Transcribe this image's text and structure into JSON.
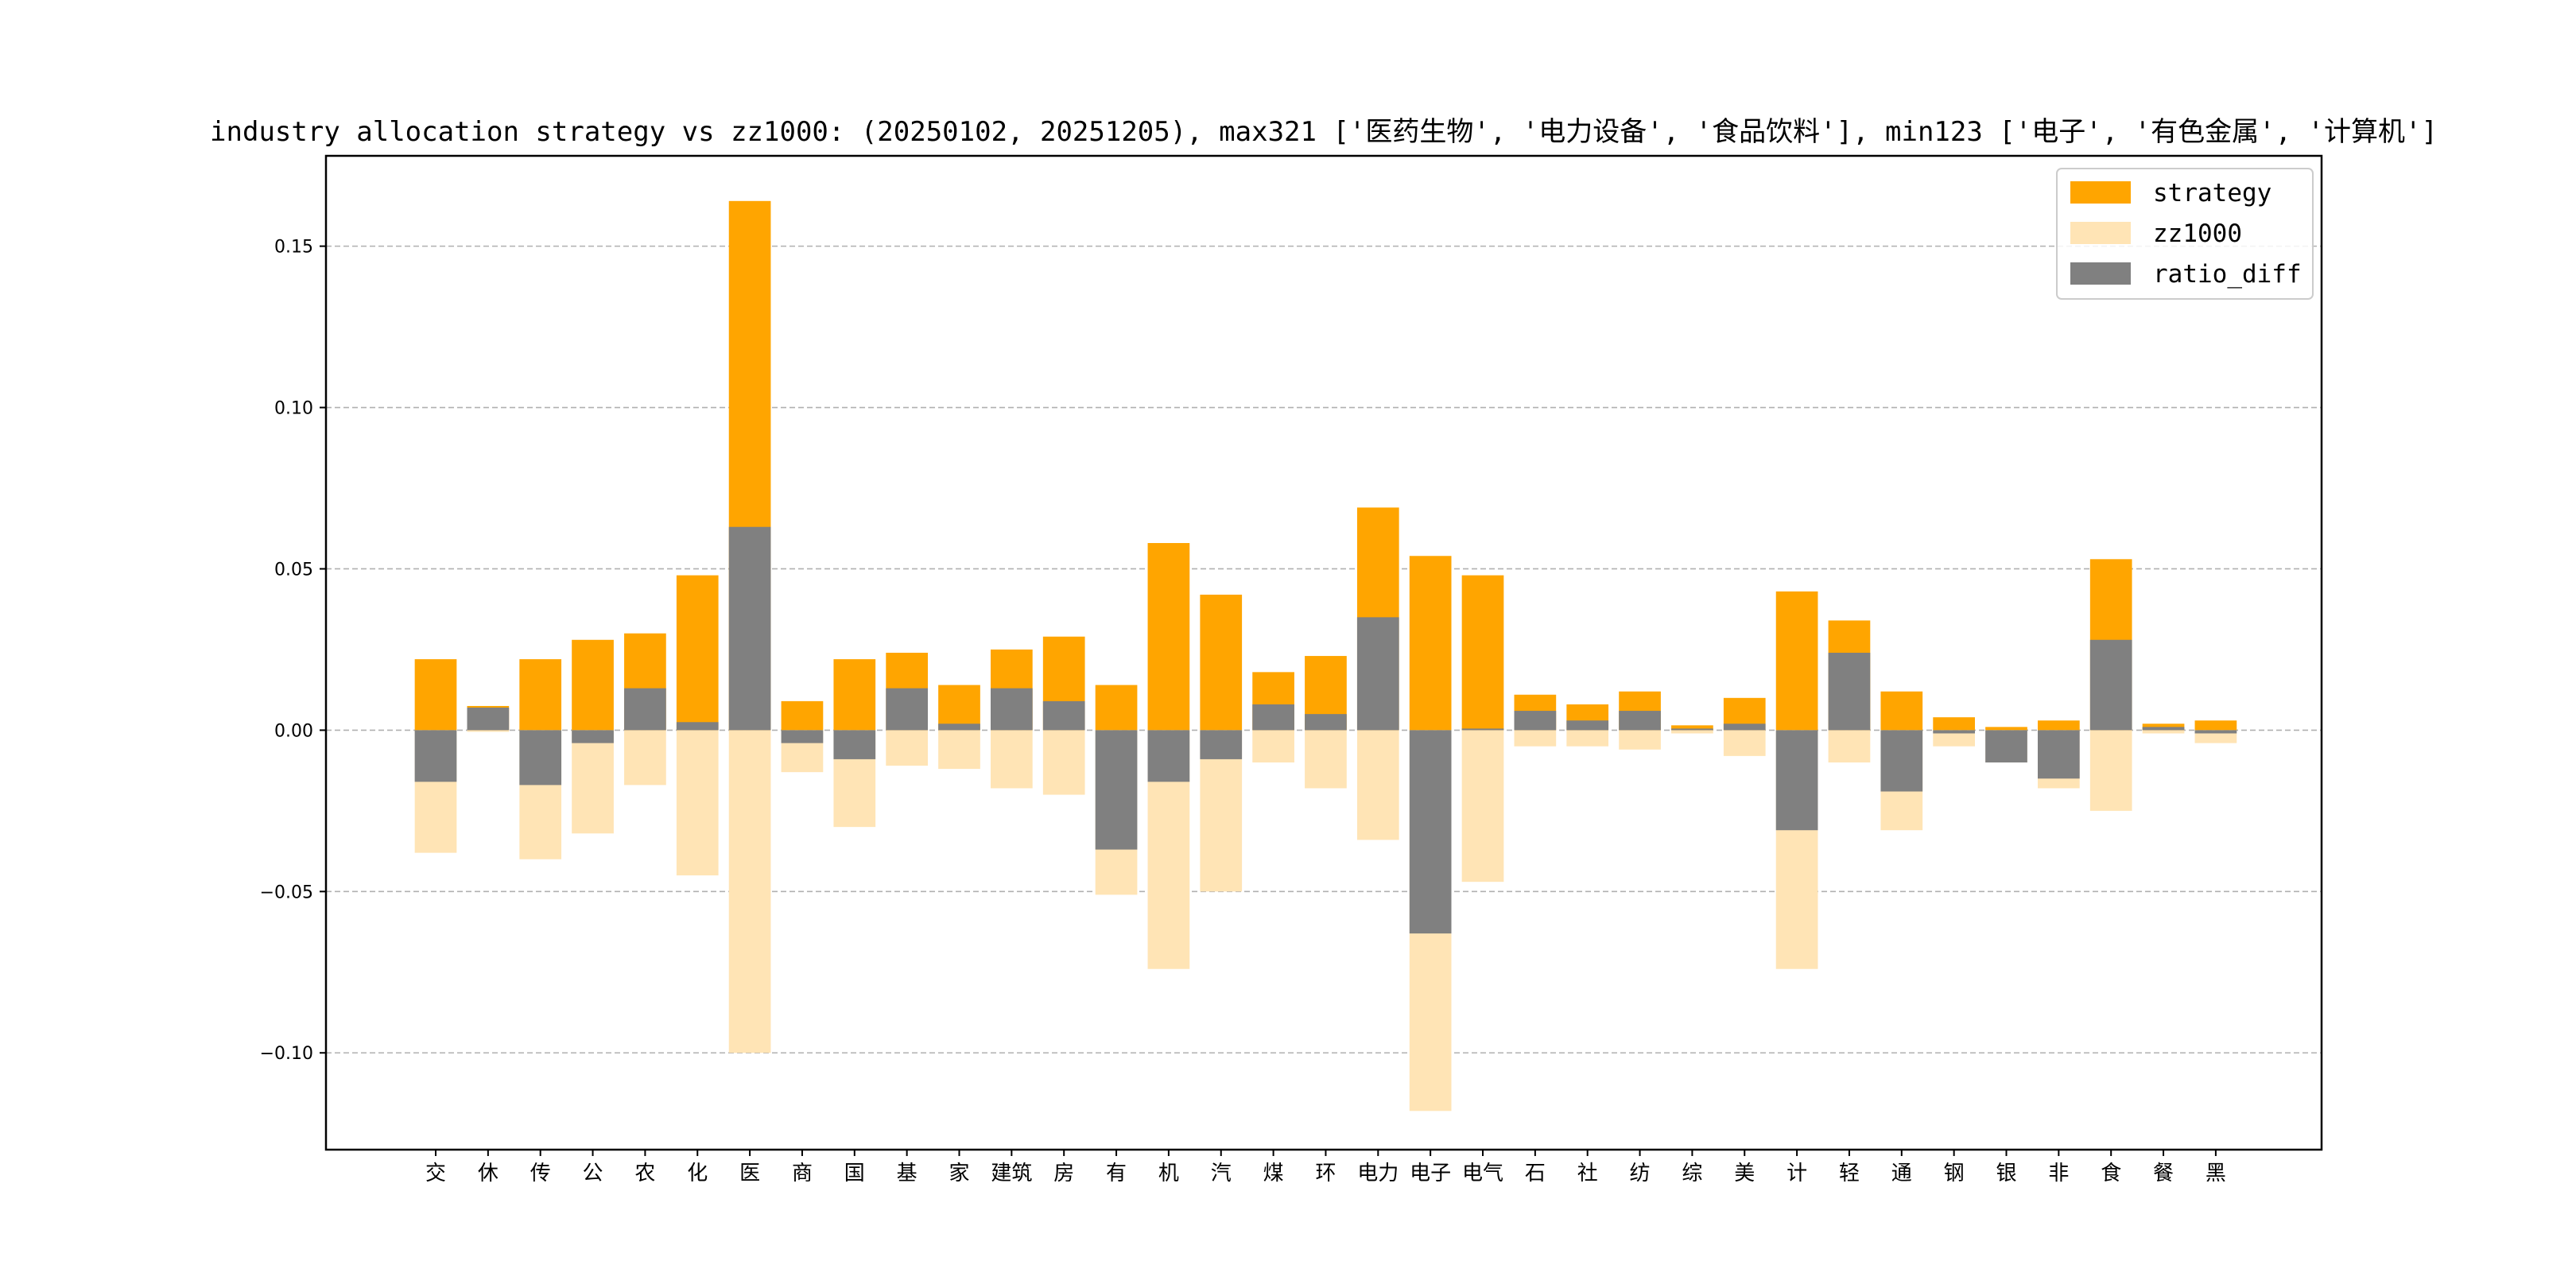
{
  "chart_data": {
    "type": "bar",
    "title": "industry allocation strategy vs zz1000: (20250102, 20251205), max321 ['医药生物', '电力设备', '食品饮料'], min123 ['电子', '有色金属', '计算机']",
    "xlabel": "",
    "ylabel": "",
    "ylim": [
      -0.13,
      0.178
    ],
    "yticks": [
      0.15,
      0.1,
      0.05,
      0.0,
      -0.05,
      -0.1
    ],
    "ytick_labels": [
      "0.15",
      "0.10",
      "0.05",
      "0.00",
      "−0.05",
      "−0.10"
    ],
    "grid": "horizontal-dashed",
    "legend_position": "top-right",
    "categories": [
      "交",
      "休",
      "传",
      "公",
      "农",
      "化",
      "医",
      "商",
      "国",
      "基",
      "家",
      "建筑",
      "房",
      "有",
      "机",
      "汽",
      "煤",
      "环",
      "电力",
      "电子",
      "电气",
      "石",
      "社",
      "纺",
      "综",
      "美",
      "计",
      "轻",
      "通",
      "钢",
      "银",
      "非",
      "食",
      "餐",
      "黑"
    ],
    "series": [
      {
        "name": "strategy",
        "color": "#FFA500",
        "values": [
          0.022,
          0.0075,
          0.022,
          0.028,
          0.03,
          0.048,
          0.164,
          0.009,
          0.022,
          0.024,
          0.014,
          0.025,
          0.029,
          0.014,
          0.058,
          0.042,
          0.018,
          0.023,
          0.069,
          0.054,
          0.048,
          0.011,
          0.008,
          0.012,
          0.0015,
          0.01,
          0.043,
          0.034,
          0.012,
          0.004,
          0.001,
          0.003,
          0.053,
          0.002,
          0.003
        ]
      },
      {
        "name": "zz1000",
        "color": "#FFE4B5",
        "values": [
          -0.038,
          -0.0005,
          -0.04,
          -0.032,
          -0.017,
          -0.045,
          -0.1,
          -0.013,
          -0.03,
          -0.011,
          -0.012,
          -0.018,
          -0.02,
          -0.051,
          -0.074,
          -0.05,
          -0.01,
          -0.018,
          -0.034,
          -0.118,
          -0.047,
          -0.005,
          -0.005,
          -0.006,
          -0.001,
          -0.008,
          -0.074,
          -0.01,
          -0.031,
          -0.005,
          -0.01,
          -0.018,
          -0.025,
          -0.001,
          -0.004
        ]
      },
      {
        "name": "ratio_diff",
        "color": "#808080",
        "values": [
          -0.016,
          0.007,
          -0.017,
          -0.004,
          0.013,
          0.0025,
          0.063,
          -0.004,
          -0.009,
          0.013,
          0.002,
          0.013,
          0.009,
          -0.037,
          -0.016,
          -0.009,
          0.008,
          0.005,
          0.035,
          -0.063,
          0.0005,
          0.006,
          0.003,
          0.006,
          0.0005,
          0.002,
          -0.031,
          0.024,
          -0.019,
          -0.001,
          -0.01,
          -0.015,
          0.028,
          0.001,
          -0.001
        ]
      }
    ]
  }
}
